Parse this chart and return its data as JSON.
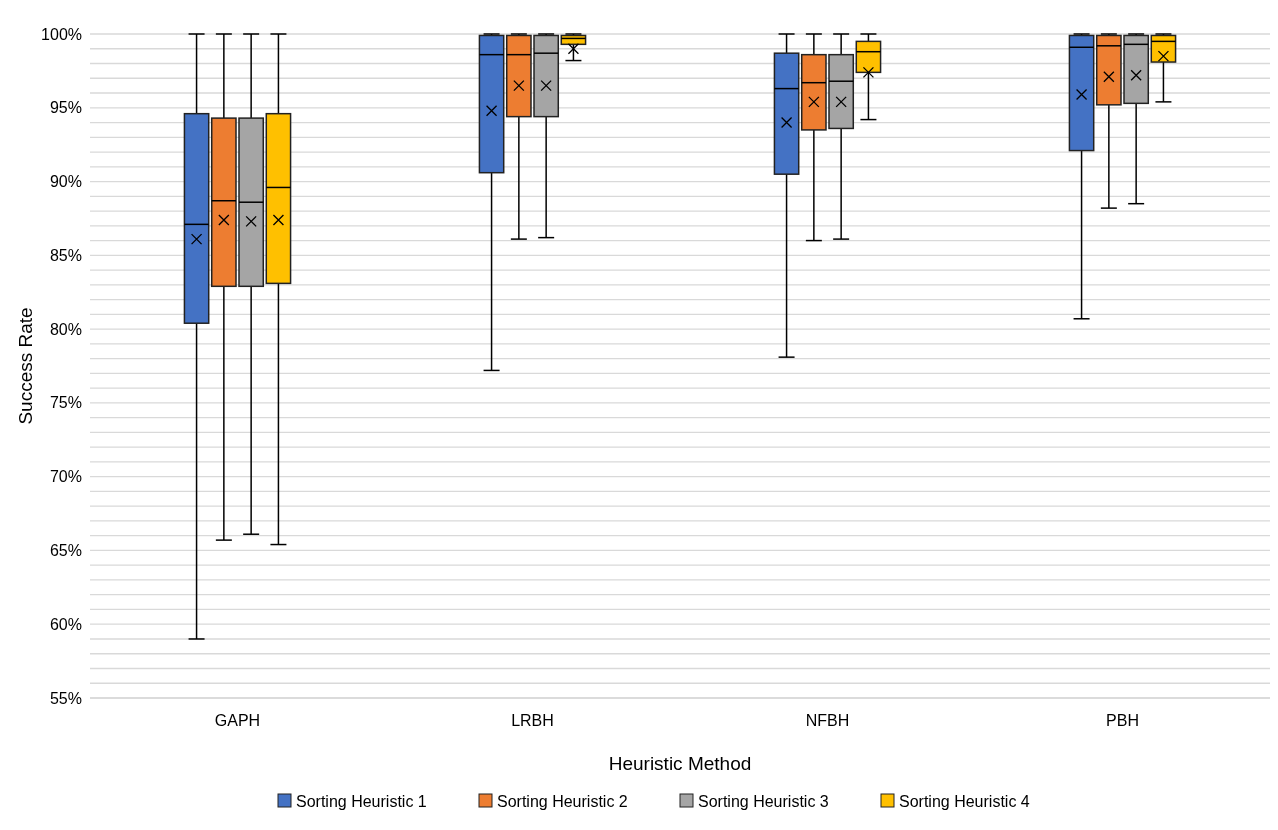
{
  "chart_data": {
    "type": "box",
    "xlabel": "Heuristic Method",
    "ylabel": "Success Rate",
    "categories": [
      "GAPH",
      "LRBH",
      "NFBH",
      "PBH"
    ],
    "ylim": [
      55,
      100
    ],
    "yticks": [
      {
        "value": 55,
        "label": "55%"
      },
      {
        "value": 56,
        "label": null
      },
      {
        "value": 57,
        "label": null
      },
      {
        "value": 58,
        "label": null
      },
      {
        "value": 59,
        "label": null
      },
      {
        "value": 60,
        "label": "60%"
      },
      {
        "value": 61,
        "label": null
      },
      {
        "value": 62,
        "label": null
      },
      {
        "value": 63,
        "label": null
      },
      {
        "value": 64,
        "label": null
      },
      {
        "value": 65,
        "label": "65%"
      },
      {
        "value": 66,
        "label": null
      },
      {
        "value": 67,
        "label": null
      },
      {
        "value": 68,
        "label": null
      },
      {
        "value": 69,
        "label": null
      },
      {
        "value": 70,
        "label": "70%"
      },
      {
        "value": 71,
        "label": null
      },
      {
        "value": 72,
        "label": null
      },
      {
        "value": 73,
        "label": null
      },
      {
        "value": 74,
        "label": null
      },
      {
        "value": 75,
        "label": "75%"
      },
      {
        "value": 76,
        "label": null
      },
      {
        "value": 77,
        "label": null
      },
      {
        "value": 78,
        "label": null
      },
      {
        "value": 79,
        "label": null
      },
      {
        "value": 80,
        "label": "80%"
      },
      {
        "value": 81,
        "label": null
      },
      {
        "value": 82,
        "label": null
      },
      {
        "value": 83,
        "label": null
      },
      {
        "value": 84,
        "label": null
      },
      {
        "value": 85,
        "label": "85%"
      },
      {
        "value": 86,
        "label": null
      },
      {
        "value": 87,
        "label": null
      },
      {
        "value": 88,
        "label": null
      },
      {
        "value": 89,
        "label": null
      },
      {
        "value": 90,
        "label": "90%"
      },
      {
        "value": 91,
        "label": null
      },
      {
        "value": 92,
        "label": null
      },
      {
        "value": 93,
        "label": null
      },
      {
        "value": 94,
        "label": null
      },
      {
        "value": 95,
        "label": "95%"
      },
      {
        "value": 96,
        "label": null
      },
      {
        "value": 97,
        "label": null
      },
      {
        "value": 98,
        "label": null
      },
      {
        "value": 99,
        "label": null
      },
      {
        "value": 100,
        "label": "100%"
      }
    ],
    "grid": "y",
    "legend": "bottom",
    "marker": "cross",
    "series": [
      {
        "name": "Sorting Heuristic 1",
        "color": "#4472c4",
        "boxes": [
          {
            "low": 59.0,
            "q1": 80.4,
            "median": 87.1,
            "q3": 94.6,
            "high": 100,
            "mean": 86.1
          },
          {
            "low": 77.2,
            "q1": 90.6,
            "median": 98.6,
            "q3": 99.9,
            "high": 100,
            "mean": 94.8
          },
          {
            "low": 78.1,
            "q1": 90.5,
            "median": 96.3,
            "q3": 98.7,
            "high": 100,
            "mean": 94.0
          },
          {
            "low": 80.7,
            "q1": 92.1,
            "median": 99.1,
            "q3": 99.9,
            "high": 100,
            "mean": 95.9
          }
        ]
      },
      {
        "name": "Sorting Heuristic 2",
        "color": "#ed7d31",
        "boxes": [
          {
            "low": 65.7,
            "q1": 82.9,
            "median": 88.7,
            "q3": 94.3,
            "high": 100,
            "mean": 87.4
          },
          {
            "low": 86.1,
            "q1": 94.4,
            "median": 98.6,
            "q3": 99.9,
            "high": 100,
            "mean": 96.5
          },
          {
            "low": 86.0,
            "q1": 93.5,
            "median": 96.7,
            "q3": 98.6,
            "high": 100,
            "mean": 95.4
          },
          {
            "low": 88.2,
            "q1": 95.2,
            "median": 99.2,
            "q3": 99.9,
            "high": 100,
            "mean": 97.1
          }
        ]
      },
      {
        "name": "Sorting Heuristic 3",
        "color": "#a5a5a5",
        "boxes": [
          {
            "low": 66.1,
            "q1": 82.9,
            "median": 88.6,
            "q3": 94.3,
            "high": 100,
            "mean": 87.3
          },
          {
            "low": 86.2,
            "q1": 94.4,
            "median": 98.7,
            "q3": 99.9,
            "high": 100,
            "mean": 96.5
          },
          {
            "low": 86.1,
            "q1": 93.6,
            "median": 96.8,
            "q3": 98.6,
            "high": 100,
            "mean": 95.4
          },
          {
            "low": 88.5,
            "q1": 95.3,
            "median": 99.3,
            "q3": 99.9,
            "high": 100,
            "mean": 97.2
          }
        ]
      },
      {
        "name": "Sorting Heuristic 4",
        "color": "#ffc000",
        "boxes": [
          {
            "low": 65.4,
            "q1": 83.1,
            "median": 89.6,
            "q3": 94.6,
            "high": 100,
            "mean": 87.4
          },
          {
            "low": 98.2,
            "q1": 99.3,
            "median": 99.7,
            "q3": 99.9,
            "high": 100,
            "mean": 99.0
          },
          {
            "low": 94.2,
            "q1": 97.4,
            "median": 98.8,
            "q3": 99.5,
            "high": 100,
            "mean": 97.4
          },
          {
            "low": 95.4,
            "q1": 98.1,
            "median": 99.5,
            "q3": 99.9,
            "high": 100,
            "mean": 98.5
          }
        ]
      }
    ]
  }
}
